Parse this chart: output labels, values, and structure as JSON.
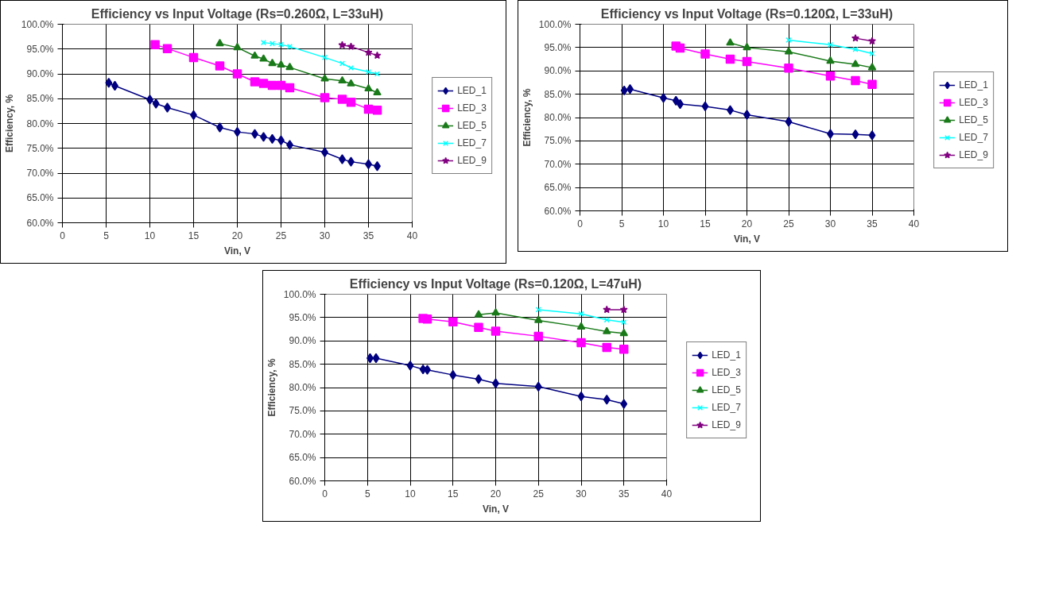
{
  "chart_data": [
    {
      "type": "line",
      "title": "Efficiency vs Input Voltage (Rs=0.260Ω, L=33uH)",
      "xlabel": "Vin, V",
      "ylabel": "Efficiency, %",
      "xlim": [
        0,
        40
      ],
      "xticks": [
        0,
        5,
        10,
        15,
        20,
        25,
        30,
        35,
        40
      ],
      "ylim": [
        60,
        100
      ],
      "yticks": [
        {
          "value": 60,
          "label": "60.0%"
        },
        {
          "value": 65,
          "label": "65.0%"
        },
        {
          "value": 70,
          "label": "70.0%"
        },
        {
          "value": 75,
          "label": "75.0%"
        },
        {
          "value": 80,
          "label": "80.0%"
        },
        {
          "value": 85,
          "label": "85.0%"
        },
        {
          "value": 90,
          "label": "90.0%"
        },
        {
          "value": 95,
          "label": "95.0%"
        },
        {
          "value": 100,
          "label": "100.0%"
        }
      ],
      "grid": true,
      "legend": "right",
      "series": [
        {
          "name": "LED_1",
          "color": "#000080",
          "marker": "diamond",
          "x": [
            5.3,
            6,
            10,
            10.7,
            12,
            15,
            18,
            20,
            22,
            23,
            24,
            25,
            26,
            30,
            32,
            33,
            35,
            36
          ],
          "values": [
            88.2,
            87.6,
            84.8,
            84.0,
            83.2,
            81.7,
            79.2,
            78.3,
            77.9,
            77.3,
            76.9,
            76.6,
            75.7,
            74.2,
            72.8,
            72.3,
            71.8,
            71.4
          ]
        },
        {
          "name": "LED_3",
          "color": "#ff00ff",
          "marker": "square",
          "x": [
            10.6,
            12,
            15,
            18,
            20,
            22,
            23,
            24,
            25,
            26,
            30,
            32,
            33,
            35,
            36
          ],
          "values": [
            95.9,
            95.1,
            93.3,
            91.6,
            90.0,
            88.4,
            88.1,
            87.7,
            87.7,
            87.2,
            85.2,
            84.9,
            84.3,
            82.9,
            82.7
          ]
        },
        {
          "name": "LED_5",
          "color": "#1a7a1a",
          "marker": "triangle",
          "x": [
            18,
            20,
            22,
            23,
            24,
            25,
            26,
            30,
            32,
            33,
            35,
            36
          ],
          "values": [
            96.1,
            95.3,
            93.6,
            93.0,
            92.1,
            91.8,
            91.3,
            89.0,
            88.6,
            88.0,
            87.0,
            86.2
          ]
        },
        {
          "name": "LED_7",
          "color": "#00ffff",
          "marker": "cross",
          "x": [
            23,
            24,
            25,
            26,
            30,
            32,
            33,
            35,
            36
          ],
          "values": [
            96.3,
            96.1,
            95.9,
            95.5,
            93.3,
            92.1,
            91.2,
            90.4,
            90.0
          ]
        },
        {
          "name": "LED_9",
          "color": "#800080",
          "marker": "star",
          "x": [
            32,
            33,
            35,
            36
          ],
          "values": [
            95.8,
            95.5,
            94.3,
            93.7
          ]
        }
      ]
    },
    {
      "type": "line",
      "title": "Efficiency vs Input Voltage (Rs=0.120Ω, L=33uH)",
      "xlabel": "Vin, V",
      "ylabel": "Efficiency, %",
      "xlim": [
        0,
        40
      ],
      "xticks": [
        0,
        5,
        10,
        15,
        20,
        25,
        30,
        35,
        40
      ],
      "ylim": [
        60,
        100
      ],
      "yticks": [
        {
          "value": 60,
          "label": "60.0%"
        },
        {
          "value": 65,
          "label": "65.0%"
        },
        {
          "value": 70,
          "label": "70.0%"
        },
        {
          "value": 75,
          "label": "75.0%"
        },
        {
          "value": 80,
          "label": "80.0%"
        },
        {
          "value": 85,
          "label": "85.0%"
        },
        {
          "value": 90,
          "label": "90.0%"
        },
        {
          "value": 95,
          "label": "95.0%"
        },
        {
          "value": 100,
          "label": "100.0%"
        }
      ],
      "grid": true,
      "legend": "right",
      "series": [
        {
          "name": "LED_1",
          "color": "#000080",
          "marker": "diamond",
          "x": [
            5.3,
            6,
            10,
            11.5,
            12,
            15,
            18,
            20,
            25,
            30,
            33,
            35
          ],
          "values": [
            85.8,
            86.1,
            84.2,
            83.6,
            82.9,
            82.4,
            81.6,
            80.6,
            79.1,
            76.5,
            76.4,
            76.2
          ]
        },
        {
          "name": "LED_3",
          "color": "#ff00ff",
          "marker": "square",
          "x": [
            11.5,
            12,
            15,
            18,
            20,
            25,
            30,
            33,
            35
          ],
          "values": [
            95.3,
            94.9,
            93.6,
            92.5,
            92.0,
            90.6,
            88.9,
            87.9,
            87.1
          ]
        },
        {
          "name": "LED_5",
          "color": "#1a7a1a",
          "marker": "triangle",
          "x": [
            18,
            20,
            25,
            30,
            33,
            35
          ],
          "values": [
            96.0,
            95.0,
            94.1,
            92.1,
            91.4,
            90.7
          ]
        },
        {
          "name": "LED_7",
          "color": "#00ffff",
          "marker": "cross",
          "x": [
            25,
            30,
            33,
            35
          ],
          "values": [
            96.6,
            95.6,
            94.6,
            93.7
          ]
        },
        {
          "name": "LED_9",
          "color": "#800080",
          "marker": "star",
          "x": [
            33,
            35
          ],
          "values": [
            97.0,
            96.4
          ]
        }
      ]
    },
    {
      "type": "line",
      "title": "Efficiency vs Input Voltage (Rs=0.120Ω, L=47uH)",
      "xlabel": "Vin, V",
      "ylabel": "Efficiency, %",
      "xlim": [
        0,
        40
      ],
      "xticks": [
        0,
        5,
        10,
        15,
        20,
        25,
        30,
        35,
        40
      ],
      "ylim": [
        60,
        100
      ],
      "yticks": [
        {
          "value": 60,
          "label": "60.0%"
        },
        {
          "value": 65,
          "label": "65.0%"
        },
        {
          "value": 70,
          "label": "70.0%"
        },
        {
          "value": 75,
          "label": "75.0%"
        },
        {
          "value": 80,
          "label": "80.0%"
        },
        {
          "value": 85,
          "label": "85.0%"
        },
        {
          "value": 90,
          "label": "90.0%"
        },
        {
          "value": 95,
          "label": "95.0%"
        },
        {
          "value": 100,
          "label": "100.0%"
        }
      ],
      "grid": true,
      "legend": "right",
      "series": [
        {
          "name": "LED_1",
          "color": "#000080",
          "marker": "diamond",
          "x": [
            5.3,
            6,
            10,
            11.5,
            12,
            15,
            18,
            20,
            25,
            30,
            33,
            35
          ],
          "values": [
            86.3,
            86.3,
            84.7,
            83.9,
            83.8,
            82.7,
            81.8,
            80.9,
            80.2,
            78.1,
            77.4,
            76.5
          ]
        },
        {
          "name": "LED_3",
          "color": "#ff00ff",
          "marker": "square",
          "x": [
            11.5,
            12,
            15,
            18,
            20,
            25,
            30,
            33,
            35
          ],
          "values": [
            94.8,
            94.7,
            94.1,
            92.9,
            92.1,
            91.0,
            89.6,
            88.6,
            88.2
          ]
        },
        {
          "name": "LED_5",
          "color": "#1a7a1a",
          "marker": "triangle",
          "x": [
            18,
            20,
            25,
            30,
            33,
            35
          ],
          "values": [
            95.6,
            96.0,
            94.4,
            93.0,
            92.0,
            91.6
          ]
        },
        {
          "name": "LED_7",
          "color": "#00ffff",
          "marker": "cross",
          "x": [
            25,
            30,
            33,
            35
          ],
          "values": [
            96.7,
            95.8,
            94.5,
            94.0
          ]
        },
        {
          "name": "LED_9",
          "color": "#800080",
          "marker": "star",
          "x": [
            33,
            35
          ],
          "values": [
            96.7,
            96.7
          ]
        }
      ]
    }
  ]
}
